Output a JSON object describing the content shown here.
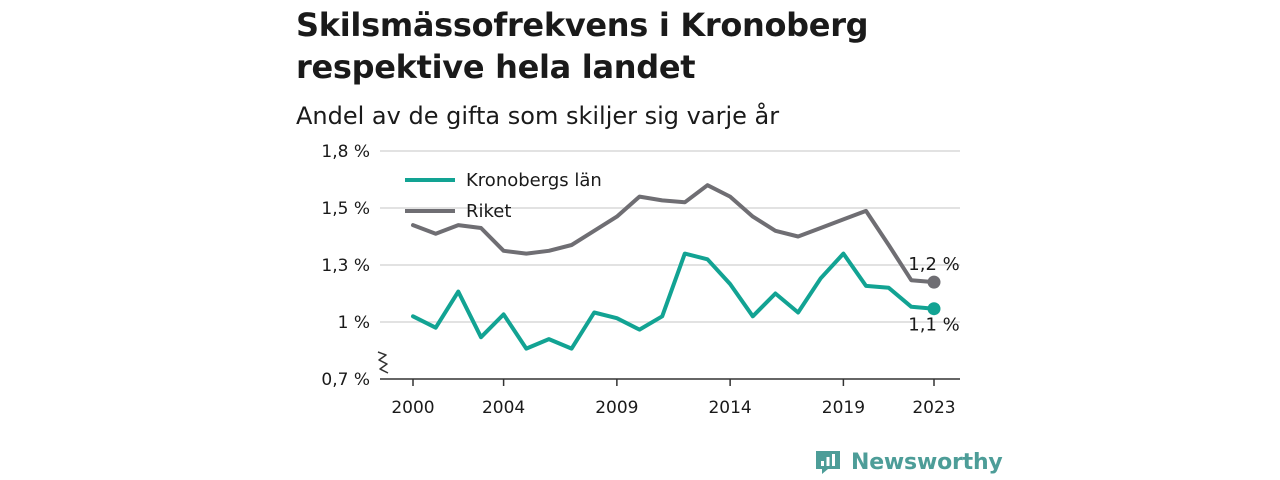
{
  "title_line1": "Skilsmässofrekvens i Kronoberg",
  "title_line2": "respektive hela landet",
  "subtitle": "Andel av de gifta som skiljer sig varje år",
  "brand": "Newsworthy",
  "colors": {
    "kronoberg": "#12a393",
    "riket": "#6f6e73",
    "grid": "#d9d9d9",
    "axis": "#333333"
  },
  "chart_data": {
    "type": "line",
    "x": [
      2000,
      2001,
      2002,
      2003,
      2004,
      2005,
      2006,
      2007,
      2008,
      2009,
      2010,
      2011,
      2012,
      2013,
      2014,
      2015,
      2016,
      2017,
      2018,
      2019,
      2020,
      2021,
      2022,
      2023
    ],
    "x_ticks": [
      2000,
      2004,
      2009,
      2014,
      2019,
      2023
    ],
    "y_ticks": [
      {
        "value": 0.7,
        "label": "0,7 %"
      },
      {
        "value": 1.0,
        "label": "1 %"
      },
      {
        "value": 1.3,
        "label": "1,3 %"
      },
      {
        "value": 1.5,
        "label": "1,5 %"
      },
      {
        "value": 1.8,
        "label": "1,8 %"
      }
    ],
    "ylim": [
      0.7,
      1.8
    ],
    "axis_break": true,
    "grid": true,
    "legend_position": "top-left",
    "series": [
      {
        "name": "Kronobergs län",
        "color": "#12a393",
        "values": [
          1.03,
          0.97,
          1.16,
          0.92,
          1.04,
          0.86,
          0.91,
          0.86,
          1.05,
          1.02,
          0.96,
          1.03,
          1.34,
          1.32,
          1.2,
          1.03,
          1.15,
          1.05,
          1.23,
          1.34,
          1.19,
          1.18,
          1.08,
          1.07
        ],
        "end_label": "1,1 %"
      },
      {
        "name": "Riket",
        "color": "#6f6e73",
        "values": [
          1.44,
          1.41,
          1.44,
          1.43,
          1.35,
          1.34,
          1.35,
          1.37,
          1.42,
          1.47,
          1.56,
          1.54,
          1.53,
          1.62,
          1.56,
          1.47,
          1.42,
          1.4,
          1.43,
          1.46,
          1.49,
          1.37,
          1.22,
          1.21
        ],
        "end_label": "1,2 %"
      }
    ]
  }
}
